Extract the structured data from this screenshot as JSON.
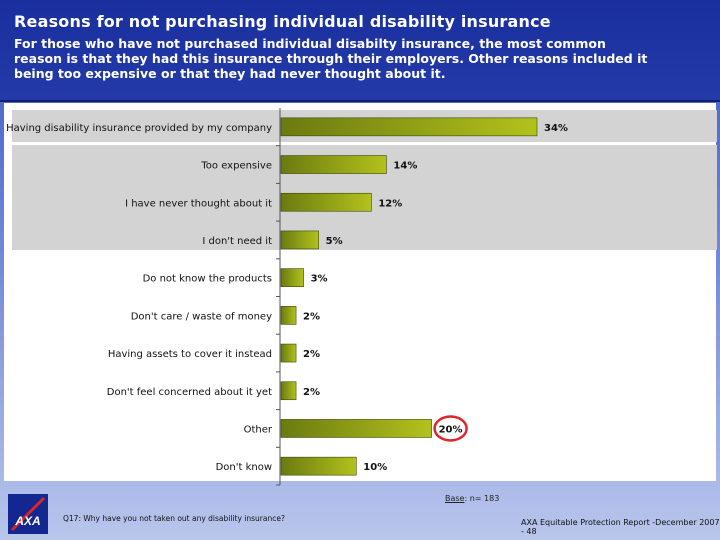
{
  "title": "Reasons for not purchasing individual disability insurance",
  "subtitle": "For those who have not purchased individual disabilty insurance, the most common reason is that they had this insurance through their employers. Other reasons included it being too expensive or that they had never thought about it.",
  "base_label": "Base",
  "base_value": ": n= 183",
  "question": "Q17: Why have you not taken out any disability insurance?",
  "footer_ref": "AXA Equitable Protection Report -December  2007 - 48",
  "logo_text": "AXA",
  "colors": {
    "bar_dark": "#6b7a10",
    "bar_light": "#b2c21c",
    "header": "#1a2f9e",
    "highlight_circle": "#e0252a",
    "band": "#d3d3d3"
  },
  "chart_data": {
    "type": "bar",
    "orientation": "horizontal",
    "categories": [
      "Having disability insurance provided by my company",
      "Too expensive",
      "I have never thought about it",
      "I don't need it",
      "Do not know the products",
      "Don't care / waste of money",
      "Having assets to cover it instead",
      "Don't feel concerned about it yet",
      "Other",
      "Don't know"
    ],
    "values": [
      34,
      14,
      12,
      5,
      3,
      2,
      2,
      2,
      20,
      10
    ],
    "data_labels": [
      "34%",
      "14%",
      "12%",
      "5%",
      "3%",
      "2%",
      "2%",
      "2%",
      "20%",
      "10%"
    ],
    "highlighted_category": "Other",
    "xlim": [
      0,
      40
    ],
    "grid": false,
    "legend": "none"
  }
}
